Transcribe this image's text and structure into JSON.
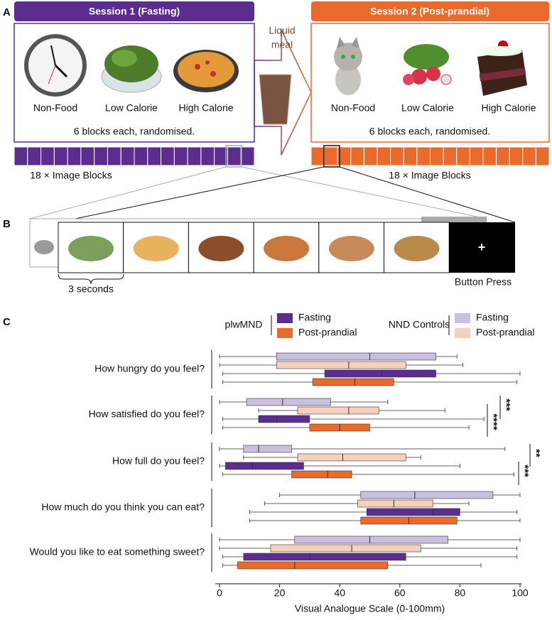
{
  "panel_a": {
    "label": "A",
    "session1": {
      "title": "Session 1 (Fasting)",
      "items": [
        "Non-Food",
        "Low Calorie",
        "High Calorie"
      ],
      "note": "6 blocks each, randomised.",
      "blocks": "18 × Image Blocks"
    },
    "session2": {
      "title": "Session 2 (Post-prandial)",
      "items": [
        "Non-Food",
        "Low Calorie",
        "High Calorie"
      ],
      "note": "6 blocks each, randomised.",
      "blocks": "18 × Image Blocks"
    },
    "meal": [
      "Liquid",
      "meal"
    ]
  },
  "panel_b": {
    "label": "B",
    "duration": "3 seconds",
    "fixation": "+",
    "end": "Button Press"
  },
  "panel_c": {
    "label": "C"
  },
  "chart_data": {
    "type": "box",
    "categories": [
      "How hungry do you feel?",
      "How satisfied do you feel?",
      "How full do you feel?",
      "How much do you think you can eat?",
      "Would you like to eat something sweet?"
    ],
    "x_label": "Visual Analogue Scale (0-100mm)",
    "xlim": [
      0,
      100
    ],
    "xticks": [
      0,
      20,
      40,
      60,
      80,
      100
    ],
    "series": [
      {
        "name": "Fasting",
        "group": "NND Controls",
        "color": "#c9bfe0",
        "min": [
          0,
          0,
          0,
          20,
          0
        ],
        "q1": [
          19,
          9,
          8,
          47,
          25
        ],
        "median": [
          50,
          21,
          13,
          65,
          50
        ],
        "q3": [
          72,
          37,
          24,
          91,
          76
        ],
        "max": [
          79,
          56,
          95,
          100,
          100
        ]
      },
      {
        "name": "Post-prandial",
        "group": "NND Controls",
        "color": "#f7cfbd",
        "min": [
          0,
          13,
          8,
          15,
          0
        ],
        "q1": [
          19,
          26,
          26,
          46,
          17
        ],
        "median": [
          43,
          43,
          41,
          58,
          44
        ],
        "q3": [
          62,
          53,
          62,
          71,
          67
        ],
        "max": [
          81,
          75,
          67,
          83,
          99
        ]
      },
      {
        "name": "Fasting",
        "group": "plwMND",
        "color": "#5b2d8e",
        "min": [
          1,
          1,
          0,
          10,
          1
        ],
        "q1": [
          35,
          13,
          2,
          49,
          8
        ],
        "median": [
          54,
          19,
          11,
          71,
          30
        ],
        "q3": [
          72,
          30,
          28,
          80,
          62
        ],
        "max": [
          100,
          88,
          80,
          99,
          99
        ]
      },
      {
        "name": "Post-prandial",
        "group": "plwMND",
        "color": "#ea6a2c",
        "min": [
          1,
          1,
          1,
          10,
          1
        ],
        "q1": [
          31,
          30,
          24,
          47,
          6
        ],
        "median": [
          45,
          40,
          36,
          63,
          25
        ],
        "q3": [
          58,
          50,
          44,
          79,
          56
        ],
        "max": [
          99,
          83,
          98,
          100,
          87
        ]
      }
    ],
    "annotations": [
      "***",
      "****",
      "**",
      "***"
    ]
  }
}
